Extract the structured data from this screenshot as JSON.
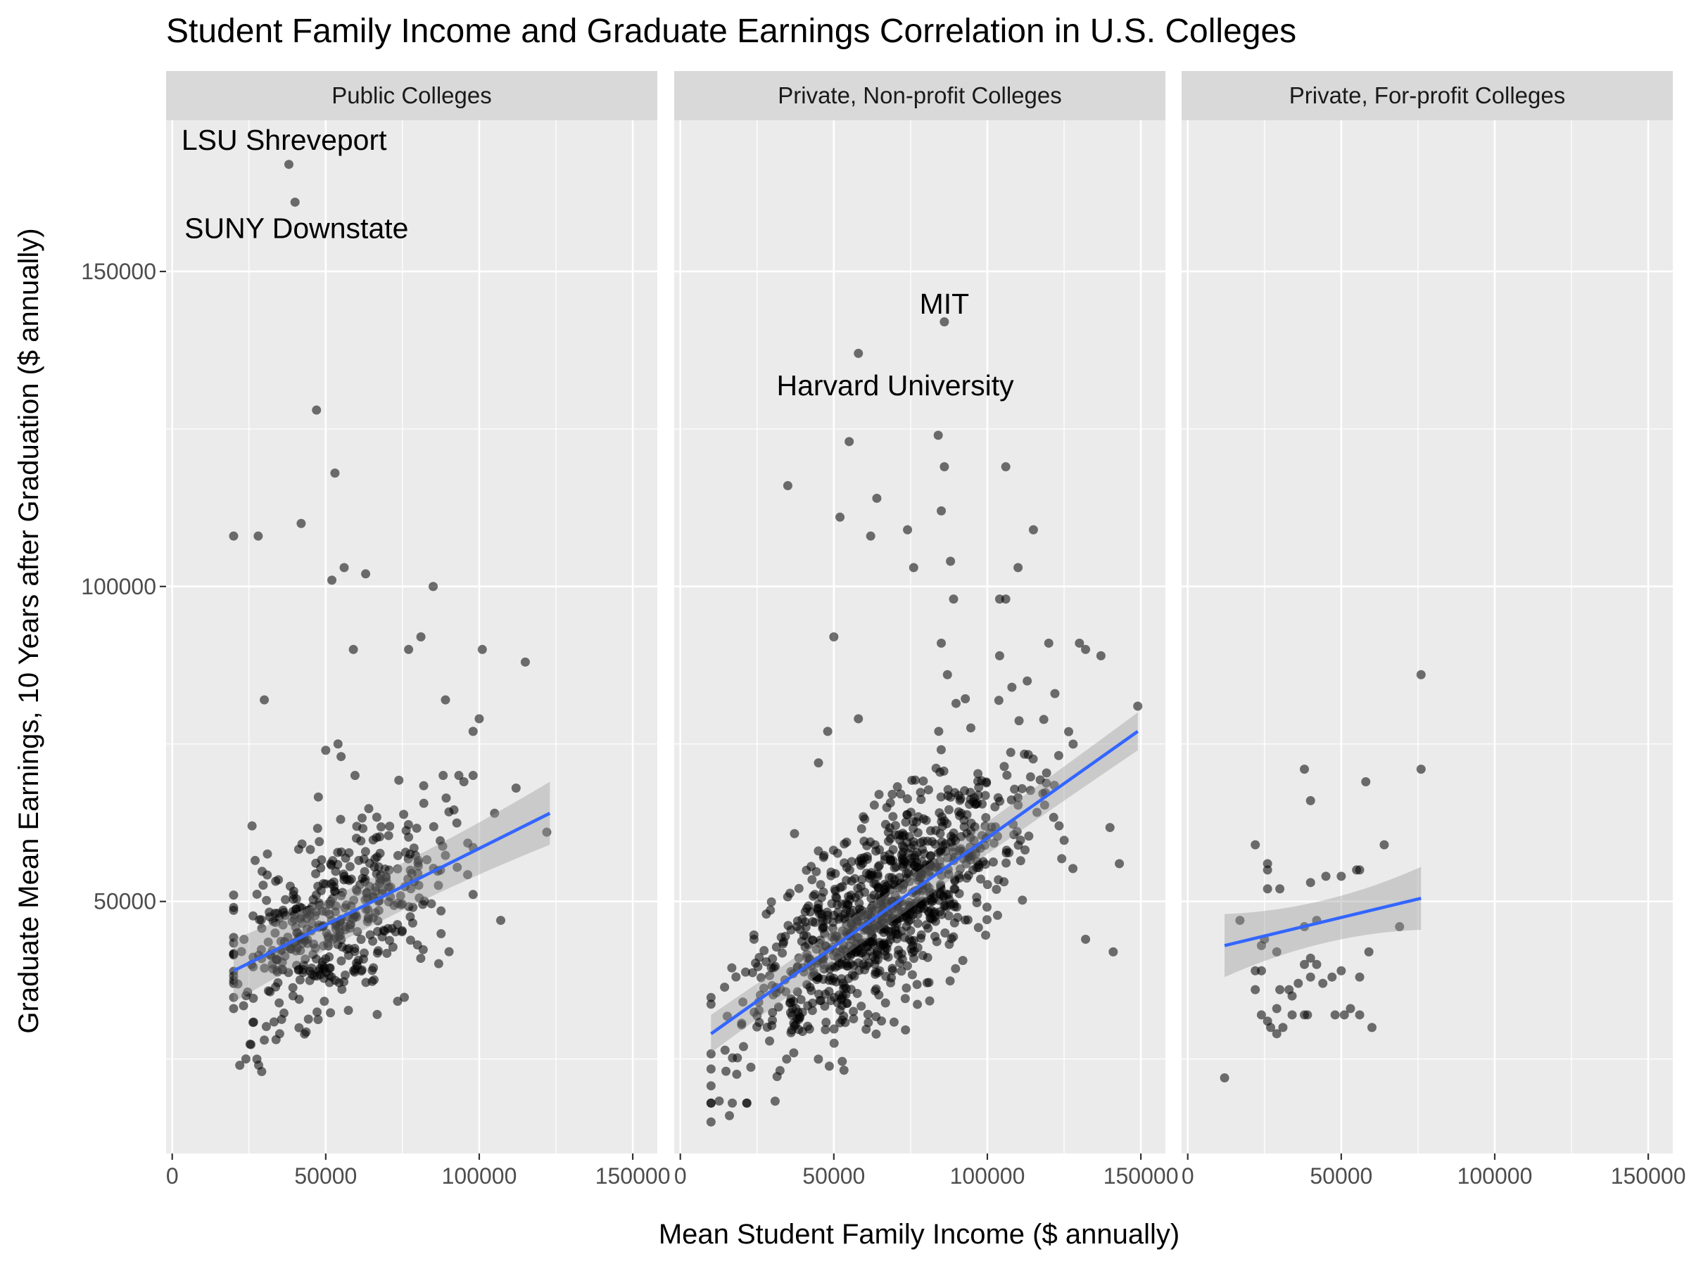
{
  "chart_data": {
    "type": "scatter",
    "title": "Student Family Income and Graduate Earnings Correlation in U.S. Colleges",
    "xlabel": "Mean Student Family Income ($ annually)",
    "ylabel": "Graduate Mean Earnings, 10 Years after Graduation ($ annually)",
    "xlim": [
      -2000,
      158000
    ],
    "ylim": [
      10000,
      174000
    ],
    "x_ticks": [
      0,
      50000,
      100000,
      150000
    ],
    "x_tick_labels": [
      "0",
      "50000",
      "100000",
      "150000"
    ],
    "y_ticks": [
      50000,
      100000,
      150000
    ],
    "y_tick_labels": [
      "50000",
      "100000",
      "150000"
    ],
    "grid": true,
    "point_color": "#000000",
    "trend_color": "#3366FF",
    "panel_background": "#EBEBEB",
    "strip_background": "#D9D9D9",
    "panels": [
      {
        "name": "Public Colleges",
        "trend": {
          "x": [
            20000,
            123000
          ],
          "y": [
            39000,
            64000
          ],
          "band_halfwidth": [
            2500,
            5000
          ]
        },
        "annotations": [
          {
            "text": "LSU Shreveport",
            "x": 38000,
            "y": 167000,
            "label_x": 3000,
            "label_y": 171000
          },
          {
            "text": "SUNY Downstate",
            "x": 40000,
            "y": 161000,
            "label_x": 4000,
            "label_y": 157000
          }
        ],
        "outliers": [
          [
            20000,
            108000
          ],
          [
            28000,
            108000
          ],
          [
            42000,
            110000
          ],
          [
            47000,
            128000
          ],
          [
            53000,
            118000
          ],
          [
            52000,
            101000
          ],
          [
            56000,
            103000
          ],
          [
            63000,
            102000
          ],
          [
            59000,
            90000
          ],
          [
            85000,
            100000
          ],
          [
            81000,
            92000
          ],
          [
            77000,
            90000
          ],
          [
            101000,
            90000
          ],
          [
            115000,
            88000
          ],
          [
            30000,
            82000
          ],
          [
            89000,
            82000
          ],
          [
            100000,
            79000
          ],
          [
            98000,
            77000
          ],
          [
            50000,
            74000
          ],
          [
            112000,
            68000
          ],
          [
            122000,
            61000
          ],
          [
            107000,
            47000
          ],
          [
            26000,
            62000
          ],
          [
            54000,
            75000
          ],
          [
            55000,
            73000
          ],
          [
            95000,
            69000
          ],
          [
            105000,
            64000
          ],
          [
            22000,
            24000
          ],
          [
            24000,
            25000
          ],
          [
            30000,
            28000
          ],
          [
            35000,
            29000
          ],
          [
            20000,
            33000
          ]
        ],
        "cluster": {
          "n": 460,
          "seed": 11,
          "x_mean": 53000,
          "x_sd": 17000,
          "x_min": 20000,
          "x_max": 98000,
          "resid_sd": 7000,
          "y_min": 23000,
          "y_max": 70000
        }
      },
      {
        "name": "Private, Non-profit Colleges",
        "trend": {
          "x": [
            10000,
            149000
          ],
          "y": [
            29000,
            77000
          ],
          "band_halfwidth": [
            2000,
            3000
          ]
        },
        "annotations": [
          {
            "text": "MIT",
            "x": 86000,
            "y": 142000,
            "label_x": 86000,
            "label_y": 145000
          },
          {
            "text": "Harvard University",
            "x": 58000,
            "y": 137000,
            "label_x": 70000,
            "label_y": 132000
          }
        ],
        "outliers": [
          [
            35000,
            116000
          ],
          [
            52000,
            111000
          ],
          [
            55000,
            123000
          ],
          [
            58000,
            79000
          ],
          [
            64000,
            114000
          ],
          [
            62000,
            108000
          ],
          [
            74000,
            109000
          ],
          [
            76000,
            103000
          ],
          [
            84000,
            124000
          ],
          [
            86000,
            119000
          ],
          [
            85000,
            112000
          ],
          [
            88000,
            104000
          ],
          [
            89000,
            98000
          ],
          [
            85000,
            91000
          ],
          [
            87000,
            86000
          ],
          [
            106000,
            119000
          ],
          [
            115000,
            109000
          ],
          [
            110000,
            103000
          ],
          [
            104000,
            98000
          ],
          [
            106000,
            98000
          ],
          [
            120000,
            91000
          ],
          [
            132000,
            90000
          ],
          [
            130000,
            91000
          ],
          [
            137000,
            89000
          ],
          [
            149000,
            81000
          ],
          [
            122000,
            83000
          ],
          [
            45000,
            72000
          ],
          [
            48000,
            77000
          ],
          [
            50000,
            92000
          ],
          [
            28000,
            48000
          ],
          [
            24000,
            44000
          ],
          [
            10000,
            15000
          ],
          [
            16000,
            16000
          ],
          [
            104000,
            89000
          ],
          [
            108000,
            84000
          ],
          [
            113000,
            85000
          ],
          [
            143000,
            56000
          ],
          [
            141000,
            42000
          ],
          [
            132000,
            44000
          ]
        ],
        "cluster": {
          "n": 950,
          "seed": 23,
          "x_mean": 65000,
          "x_sd": 22000,
          "x_min": 10000,
          "x_max": 140000,
          "resid_sd": 7500,
          "y_min": 18000,
          "y_max": 95000
        }
      },
      {
        "name": "Private, For-profit Colleges",
        "trend": {
          "x": [
            12000,
            76000
          ],
          "y": [
            43000,
            50500
          ],
          "band_halfwidth": [
            1800,
            5000
          ]
        },
        "annotations": [],
        "outliers": [
          [
            76000,
            86000
          ],
          [
            76000,
            71000
          ],
          [
            38000,
            71000
          ],
          [
            58000,
            69000
          ],
          [
            40000,
            66000
          ],
          [
            64000,
            59000
          ],
          [
            22000,
            59000
          ],
          [
            26000,
            56000
          ],
          [
            26000,
            55000
          ],
          [
            56000,
            55000
          ],
          [
            55000,
            55000
          ],
          [
            26000,
            52000
          ],
          [
            30000,
            52000
          ],
          [
            50000,
            54000
          ],
          [
            45000,
            54000
          ],
          [
            40000,
            53000
          ],
          [
            17000,
            47000
          ],
          [
            25000,
            44000
          ],
          [
            24000,
            43000
          ],
          [
            29000,
            42000
          ],
          [
            40000,
            41000
          ],
          [
            38000,
            40000
          ],
          [
            42000,
            40000
          ],
          [
            50000,
            39000
          ],
          [
            59000,
            42000
          ],
          [
            36000,
            37000
          ],
          [
            40000,
            38000
          ],
          [
            30000,
            36000
          ],
          [
            44000,
            37000
          ],
          [
            34000,
            35000
          ],
          [
            33000,
            36000
          ],
          [
            29000,
            33000
          ],
          [
            34000,
            32000
          ],
          [
            24000,
            32000
          ],
          [
            38000,
            32000
          ],
          [
            26000,
            31000
          ],
          [
            39000,
            32000
          ],
          [
            48000,
            32000
          ],
          [
            51000,
            32000
          ],
          [
            53000,
            33000
          ],
          [
            56000,
            32000
          ],
          [
            31000,
            30000
          ],
          [
            27000,
            30000
          ],
          [
            29000,
            29000
          ],
          [
            60000,
            30000
          ],
          [
            69000,
            46000
          ],
          [
            12000,
            22000
          ],
          [
            22000,
            36000
          ],
          [
            24000,
            39000
          ],
          [
            22000,
            39000
          ],
          [
            38000,
            46000
          ],
          [
            42000,
            47000
          ],
          [
            47000,
            38000
          ],
          [
            56000,
            38000
          ]
        ],
        "cluster": {
          "n": 0,
          "seed": 31,
          "x_mean": 0,
          "x_sd": 0,
          "x_min": 0,
          "x_max": 0,
          "resid_sd": 0,
          "y_min": 0,
          "y_max": 0
        }
      }
    ]
  }
}
